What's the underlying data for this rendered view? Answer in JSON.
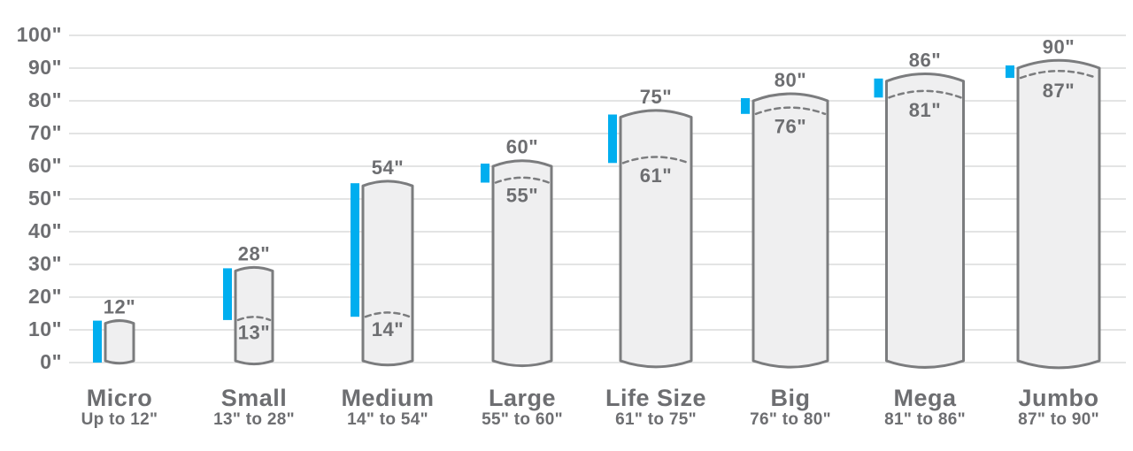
{
  "chart_data": {
    "type": "bar",
    "subtype": "range-cylinder",
    "title": "",
    "unit": "inches",
    "grid": true,
    "y_axis": {
      "min": 0,
      "max": 100,
      "step": 10,
      "tick_labels": [
        "0\"",
        "10\"",
        "20\"",
        "30\"",
        "40\"",
        "50\"",
        "60\"",
        "70\"",
        "80\"",
        "90\"",
        "100\""
      ]
    },
    "categories": [
      {
        "name": "Micro",
        "range_label": "Up to 12\"",
        "min": 0,
        "max": 12,
        "max_label": "12\"",
        "min_label": null
      },
      {
        "name": "Small",
        "range_label": "13\" to 28\"",
        "min": 13,
        "max": 28,
        "max_label": "28\"",
        "min_label": "13\""
      },
      {
        "name": "Medium",
        "range_label": "14\" to 54\"",
        "min": 14,
        "max": 54,
        "max_label": "54\"",
        "min_label": "14\""
      },
      {
        "name": "Large",
        "range_label": "55\" to 60\"",
        "min": 55,
        "max": 60,
        "max_label": "60\"",
        "min_label": "55\""
      },
      {
        "name": "Life Size",
        "range_label": "61\" to 75\"",
        "min": 61,
        "max": 75,
        "max_label": "75\"",
        "min_label": "61\""
      },
      {
        "name": "Big",
        "range_label": "76\" to 80\"",
        "min": 76,
        "max": 80,
        "max_label": "80\"",
        "min_label": "76\""
      },
      {
        "name": "Mega",
        "range_label": "81\" to 86\"",
        "min": 81,
        "max": 86,
        "max_label": "86\"",
        "min_label": "81\""
      },
      {
        "name": "Jumbo",
        "range_label": "87\" to 90\"",
        "min": 87,
        "max": 90,
        "max_label": "90\"",
        "min_label": "87\""
      }
    ],
    "colors": {
      "range_bar": "#00aeef",
      "cylinder_fill": "#efeff0",
      "cylinder_stroke": "#7b7c7e",
      "text": "#6d6e71",
      "gridline": "#d2d3d4"
    }
  }
}
